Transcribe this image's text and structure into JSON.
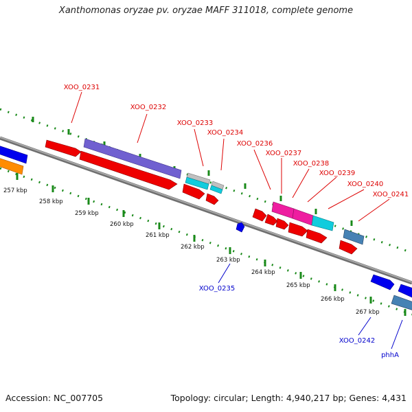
{
  "title": "Xanthomonas oryzae pv. oryzae MAFF 311018, complete genome",
  "footer": {
    "accession": "Accession: NC_007705",
    "summary": "Topology: circular; Length: 4,940,217 bp; Genes: 4,431"
  },
  "colors": {
    "backbone": "#8c8c8c",
    "tick_green": "#1a8a1a",
    "label_red": "#dd0000",
    "label_blue": "#0000cc"
  },
  "ruler": {
    "unit_labels": [
      "257 kbp",
      "258 kbp",
      "259 kbp",
      "260 kbp",
      "261 kbp",
      "262 kbp",
      "263 kbp",
      "264 kbp",
      "265 kbp",
      "266 kbp",
      "267 kbp"
    ]
  },
  "genes": [
    {
      "id": "g_blue_left",
      "label": "",
      "color": "#0000ee",
      "strand": "outer"
    },
    {
      "id": "g_orange_left",
      "label": "",
      "color": "#ff8c00",
      "strand": "inner"
    },
    {
      "id": "g_0231",
      "label": "XOO_0231",
      "color": "#ee0000",
      "strand": "outer"
    },
    {
      "id": "g_0232_purple",
      "label": "XOO_0232",
      "color": "#7060d0",
      "strand": "outer"
    },
    {
      "id": "g_0232_red",
      "label": "",
      "color": "#ee0000",
      "strand": "inner"
    },
    {
      "id": "g_0233_grey",
      "label": "XOO_0233",
      "color": "#c0c0c0",
      "strand": "outer"
    },
    {
      "id": "g_0233_cyan",
      "label": "",
      "color": "#11ccdd",
      "strand": "outer2"
    },
    {
      "id": "g_0233_red",
      "label": "",
      "color": "#ee0000",
      "strand": "inner"
    },
    {
      "id": "g_0234_grey",
      "label": "XOO_0234",
      "color": "#c0c0c0",
      "strand": "outer"
    },
    {
      "id": "g_0234_cyan",
      "label": "",
      "color": "#11ccdd",
      "strand": "outer2"
    },
    {
      "id": "g_0234_red",
      "label": "",
      "color": "#ee0000",
      "strand": "inner"
    },
    {
      "id": "g_0235",
      "label": "XOO_0235",
      "color": "#0000ee",
      "strand": "inner2"
    },
    {
      "id": "g_0236",
      "label": "XOO_0236",
      "color": "#ee0000",
      "strand": "inner"
    },
    {
      "id": "g_0237",
      "label": "XOO_0237",
      "color": "#ee0000",
      "strand": "inner"
    },
    {
      "id": "g_0238_red",
      "label": "",
      "color": "#ee0000",
      "strand": "inner"
    },
    {
      "id": "g_0237_mag",
      "label": "",
      "color": "#ee1ea0",
      "strand": "outer"
    },
    {
      "id": "g_0238_mag",
      "label": "XOO_0238",
      "color": "#ee1ea0",
      "strand": "outer"
    },
    {
      "id": "g_0239",
      "label": "XOO_0239",
      "color": "#11ccdd",
      "strand": "outer"
    },
    {
      "id": "g_0239_red",
      "label": "",
      "color": "#ee0000",
      "strand": "inner"
    },
    {
      "id": "g_0240",
      "label": "XOO_0240",
      "color": "#4682b4",
      "strand": "outer"
    },
    {
      "id": "g_0241",
      "label": "XOO_0241",
      "color": "#ee0000",
      "strand": "inner"
    },
    {
      "id": "g_0242",
      "label": "XOO_0242",
      "color": "#4682b4",
      "strand": "inner"
    },
    {
      "id": "g_phhA_blue",
      "label": "phhA",
      "color": "#0000ee",
      "strand": "inner"
    },
    {
      "id": "g_blue_right",
      "label": "",
      "color": "#0000ee",
      "strand": "inner"
    }
  ]
}
